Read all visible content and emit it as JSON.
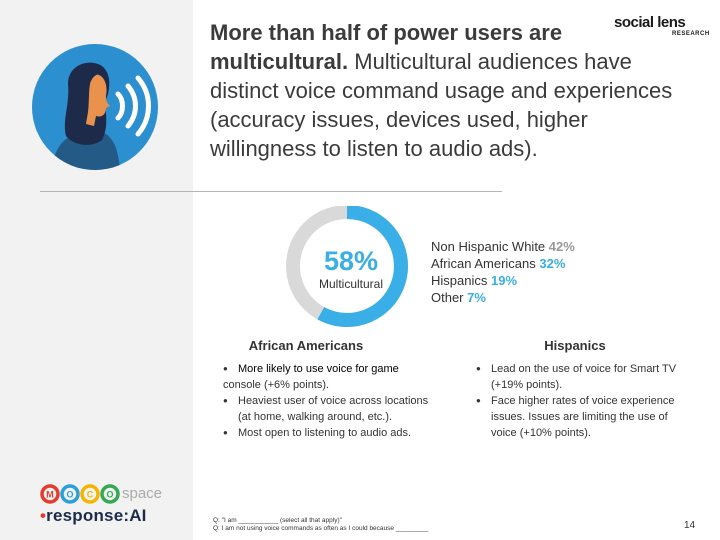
{
  "headline": {
    "bold": "More than half of power users are multicultural.",
    "rest": " Multicultural audiences have distinct voice command usage and experiences (accuracy issues, devices used, higher willingness to listen to audio ads)."
  },
  "brand": {
    "main": "social lens",
    "sub": "RESEARCH"
  },
  "donut": {
    "percent": "58%",
    "label": "Multicultural",
    "fraction": 0.58,
    "colors": {
      "filled": "#3aaee6",
      "rest": "#d9d9d9"
    }
  },
  "legend": [
    {
      "label": "Non Hispanic White",
      "value": "42%",
      "tone": "grey"
    },
    {
      "label": "African Americans",
      "value": "32%",
      "tone": "blue"
    },
    {
      "label": "Hispanics",
      "value": "19%",
      "tone": "blue"
    },
    {
      "label": "Other",
      "value": "7%",
      "tone": "blue"
    }
  ],
  "african_americans": {
    "title": "African Americans",
    "bullets": [
      {
        "text": "More likely to use voice for game",
        "cont": "console (+6% points)."
      },
      {
        "text": "Heaviest user of voice across locations (at home, walking around, etc.).",
        "cont": ""
      },
      {
        "text": "Most open to listening to audio ads.",
        "cont": ""
      }
    ]
  },
  "hispanics": {
    "title": "Hispanics",
    "bullets": [
      "Lead on the use of voice for Smart TV (+19% points).",
      "Face higher rates of voice experience issues. Issues are limiting the use of voice (+10% points)."
    ]
  },
  "logos": {
    "moco": [
      "M",
      "O",
      "C",
      "O"
    ],
    "moco_suffix": "space",
    "response_prefix": "response:AI"
  },
  "footnotes": [
    "Q: \"I am ___________ (select all that apply)\"",
    "Q: I am not using voice commands as often as I could because _________"
  ],
  "page_number": "14",
  "colors": {
    "accent_blue": "#3aaee6",
    "avatar_blue": "#2b8fd0",
    "hair": "#1e2a4a",
    "skin": "#e8924e"
  }
}
